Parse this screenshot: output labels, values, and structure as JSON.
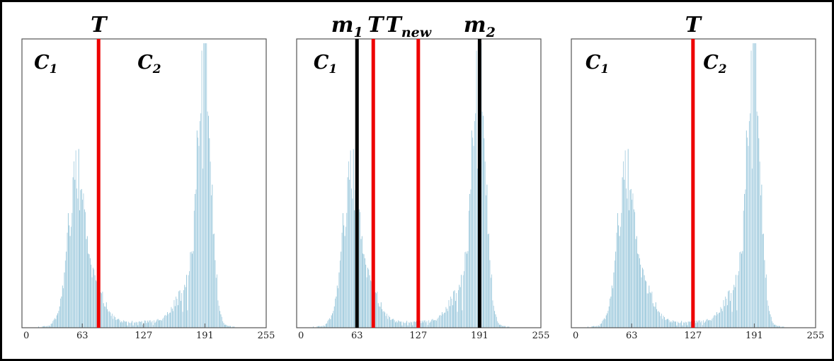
{
  "figure": {
    "background": "#ffffff",
    "border_color": "#000000",
    "axis_color": "#555555",
    "tick_color": "#222222",
    "bar_fill": "#a5cde0",
    "bar_fill_alt": "#8cc0d6",
    "line_colors": {
      "red": "#ee0000",
      "black": "#000000"
    }
  },
  "chart_data": [
    {
      "type": "histogram",
      "panel": "left",
      "x_range": [
        0,
        255
      ],
      "x_ticks": [
        "0",
        "63",
        "127",
        "191",
        "255"
      ],
      "x_tick_values": [
        0,
        63,
        127,
        191,
        255
      ],
      "ylim": [
        0,
        1
      ],
      "grid": false,
      "classes": [
        {
          "main": "C",
          "sub": "1",
          "x": 25
        },
        {
          "main": "C",
          "sub": "2",
          "x": 133
        }
      ],
      "thresholds": [
        {
          "main": "T",
          "sub": "",
          "x": 80,
          "color": "red",
          "label_dx": 0
        }
      ],
      "distribution": [
        {
          "center": 56,
          "sigma": 9,
          "amp": 0.46
        },
        {
          "center": 74,
          "sigma": 11,
          "amp": 0.12
        },
        {
          "center": 120,
          "sigma": 55,
          "amp": 0.02
        },
        {
          "center": 175,
          "sigma": 13,
          "amp": 0.13
        },
        {
          "center": 191,
          "sigma": 6.5,
          "amp": 0.95
        }
      ]
    },
    {
      "type": "histogram",
      "panel": "middle",
      "x_range": [
        0,
        255
      ],
      "x_ticks": [
        "0",
        "63",
        "127",
        "191",
        "255"
      ],
      "x_tick_values": [
        0,
        63,
        127,
        191,
        255
      ],
      "ylim": [
        0,
        1
      ],
      "grid": false,
      "classes": [
        {
          "main": "C",
          "sub": "1",
          "x": 30
        }
      ],
      "thresholds": [
        {
          "main": "m",
          "sub": "1",
          "x": 63,
          "color": "black",
          "label_dx": -14
        },
        {
          "main": "T",
          "sub": "",
          "x": 80,
          "color": "red",
          "label_dx": 3
        },
        {
          "main": "T",
          "sub": "new",
          "x": 127,
          "color": "red",
          "label_dx": -14
        },
        {
          "main": "m",
          "sub": "2",
          "x": 191,
          "color": "black",
          "label_dx": 0
        }
      ],
      "distribution": [
        {
          "center": 56,
          "sigma": 9,
          "amp": 0.46
        },
        {
          "center": 74,
          "sigma": 11,
          "amp": 0.12
        },
        {
          "center": 120,
          "sigma": 55,
          "amp": 0.02
        },
        {
          "center": 175,
          "sigma": 13,
          "amp": 0.13
        },
        {
          "center": 191,
          "sigma": 6.5,
          "amp": 0.95
        }
      ]
    },
    {
      "type": "histogram",
      "panel": "right",
      "x_range": [
        0,
        255
      ],
      "x_ticks": [
        "0",
        "63",
        "127",
        "191",
        "255"
      ],
      "x_tick_values": [
        0,
        63,
        127,
        191,
        255
      ],
      "ylim": [
        0,
        1
      ],
      "grid": false,
      "classes": [
        {
          "main": "C",
          "sub": "1",
          "x": 27
        },
        {
          "main": "C",
          "sub": "2",
          "x": 150
        }
      ],
      "thresholds": [
        {
          "main": "T",
          "sub": "",
          "x": 127,
          "color": "red",
          "label_dx": 0
        }
      ],
      "distribution": [
        {
          "center": 56,
          "sigma": 9,
          "amp": 0.46
        },
        {
          "center": 74,
          "sigma": 11,
          "amp": 0.12
        },
        {
          "center": 120,
          "sigma": 55,
          "amp": 0.02
        },
        {
          "center": 175,
          "sigma": 13,
          "amp": 0.13
        },
        {
          "center": 191,
          "sigma": 6.5,
          "amp": 0.95
        }
      ]
    }
  ]
}
